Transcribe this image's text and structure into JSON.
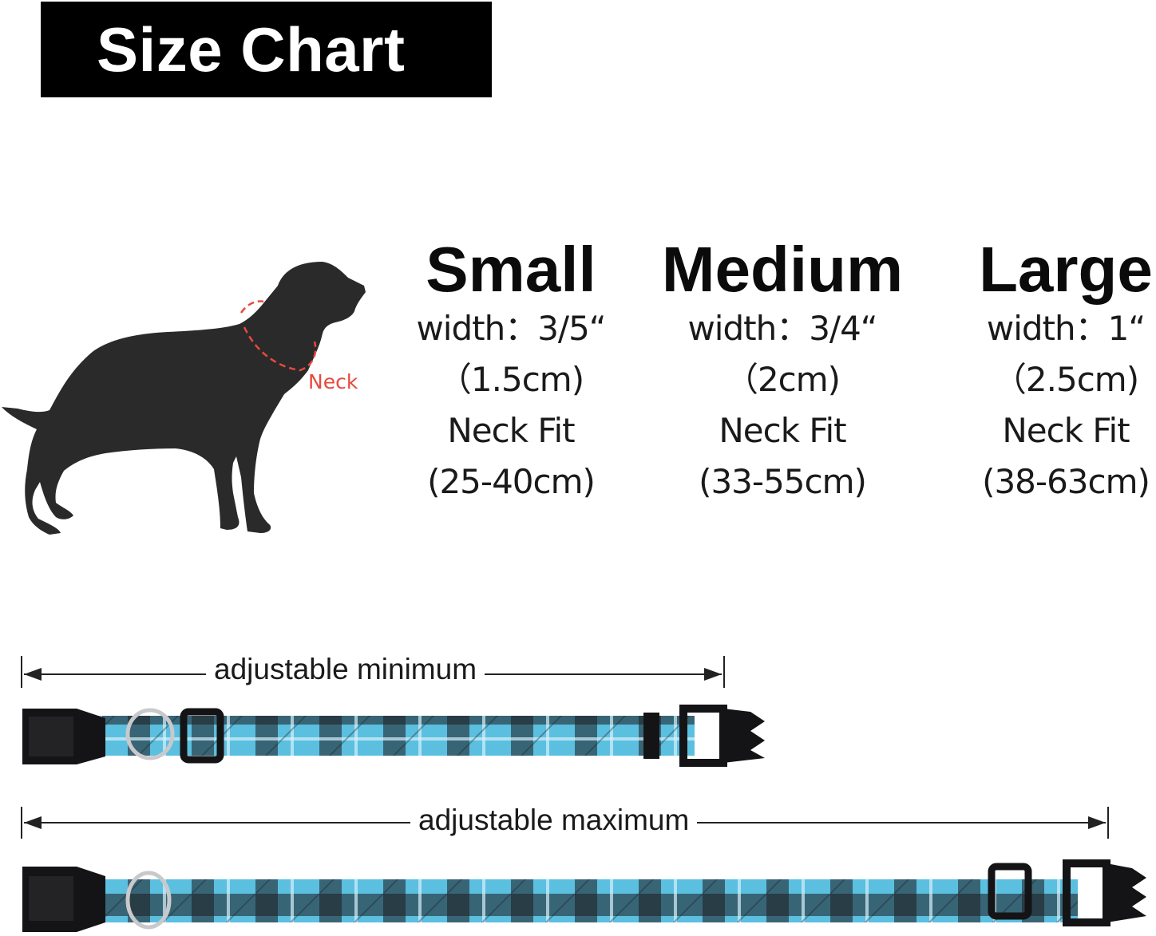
{
  "title": "Size Chart",
  "dog_figure": {
    "neck_label": "Neck"
  },
  "sizes": [
    {
      "name": "Small",
      "width": "width：3/5“",
      "width_cm": "（1.5cm)",
      "neck_fit_label": "Neck Fit",
      "neck_fit": "(25-40cm)"
    },
    {
      "name": "Medium",
      "width": "width：3/4“",
      "width_cm": "（2cm)",
      "neck_fit_label": "Neck Fit",
      "neck_fit": "(33-55cm)"
    },
    {
      "name": "Large",
      "width": "width：1“",
      "width_cm": "（2.5cm)",
      "neck_fit_label": "Neck Fit",
      "neck_fit": "(38-63cm)"
    }
  ],
  "collars": {
    "minimum_label": "adjustable minimum",
    "maximum_label": "adjustable maximum"
  },
  "colors": {
    "title_bg": "#000000",
    "title_text": "#ffffff",
    "neck_accent": "#e8493f",
    "collar_blue": "#5bbfe0",
    "collar_check": "#1b1b1f",
    "silhouette": "#2a2a2a"
  }
}
